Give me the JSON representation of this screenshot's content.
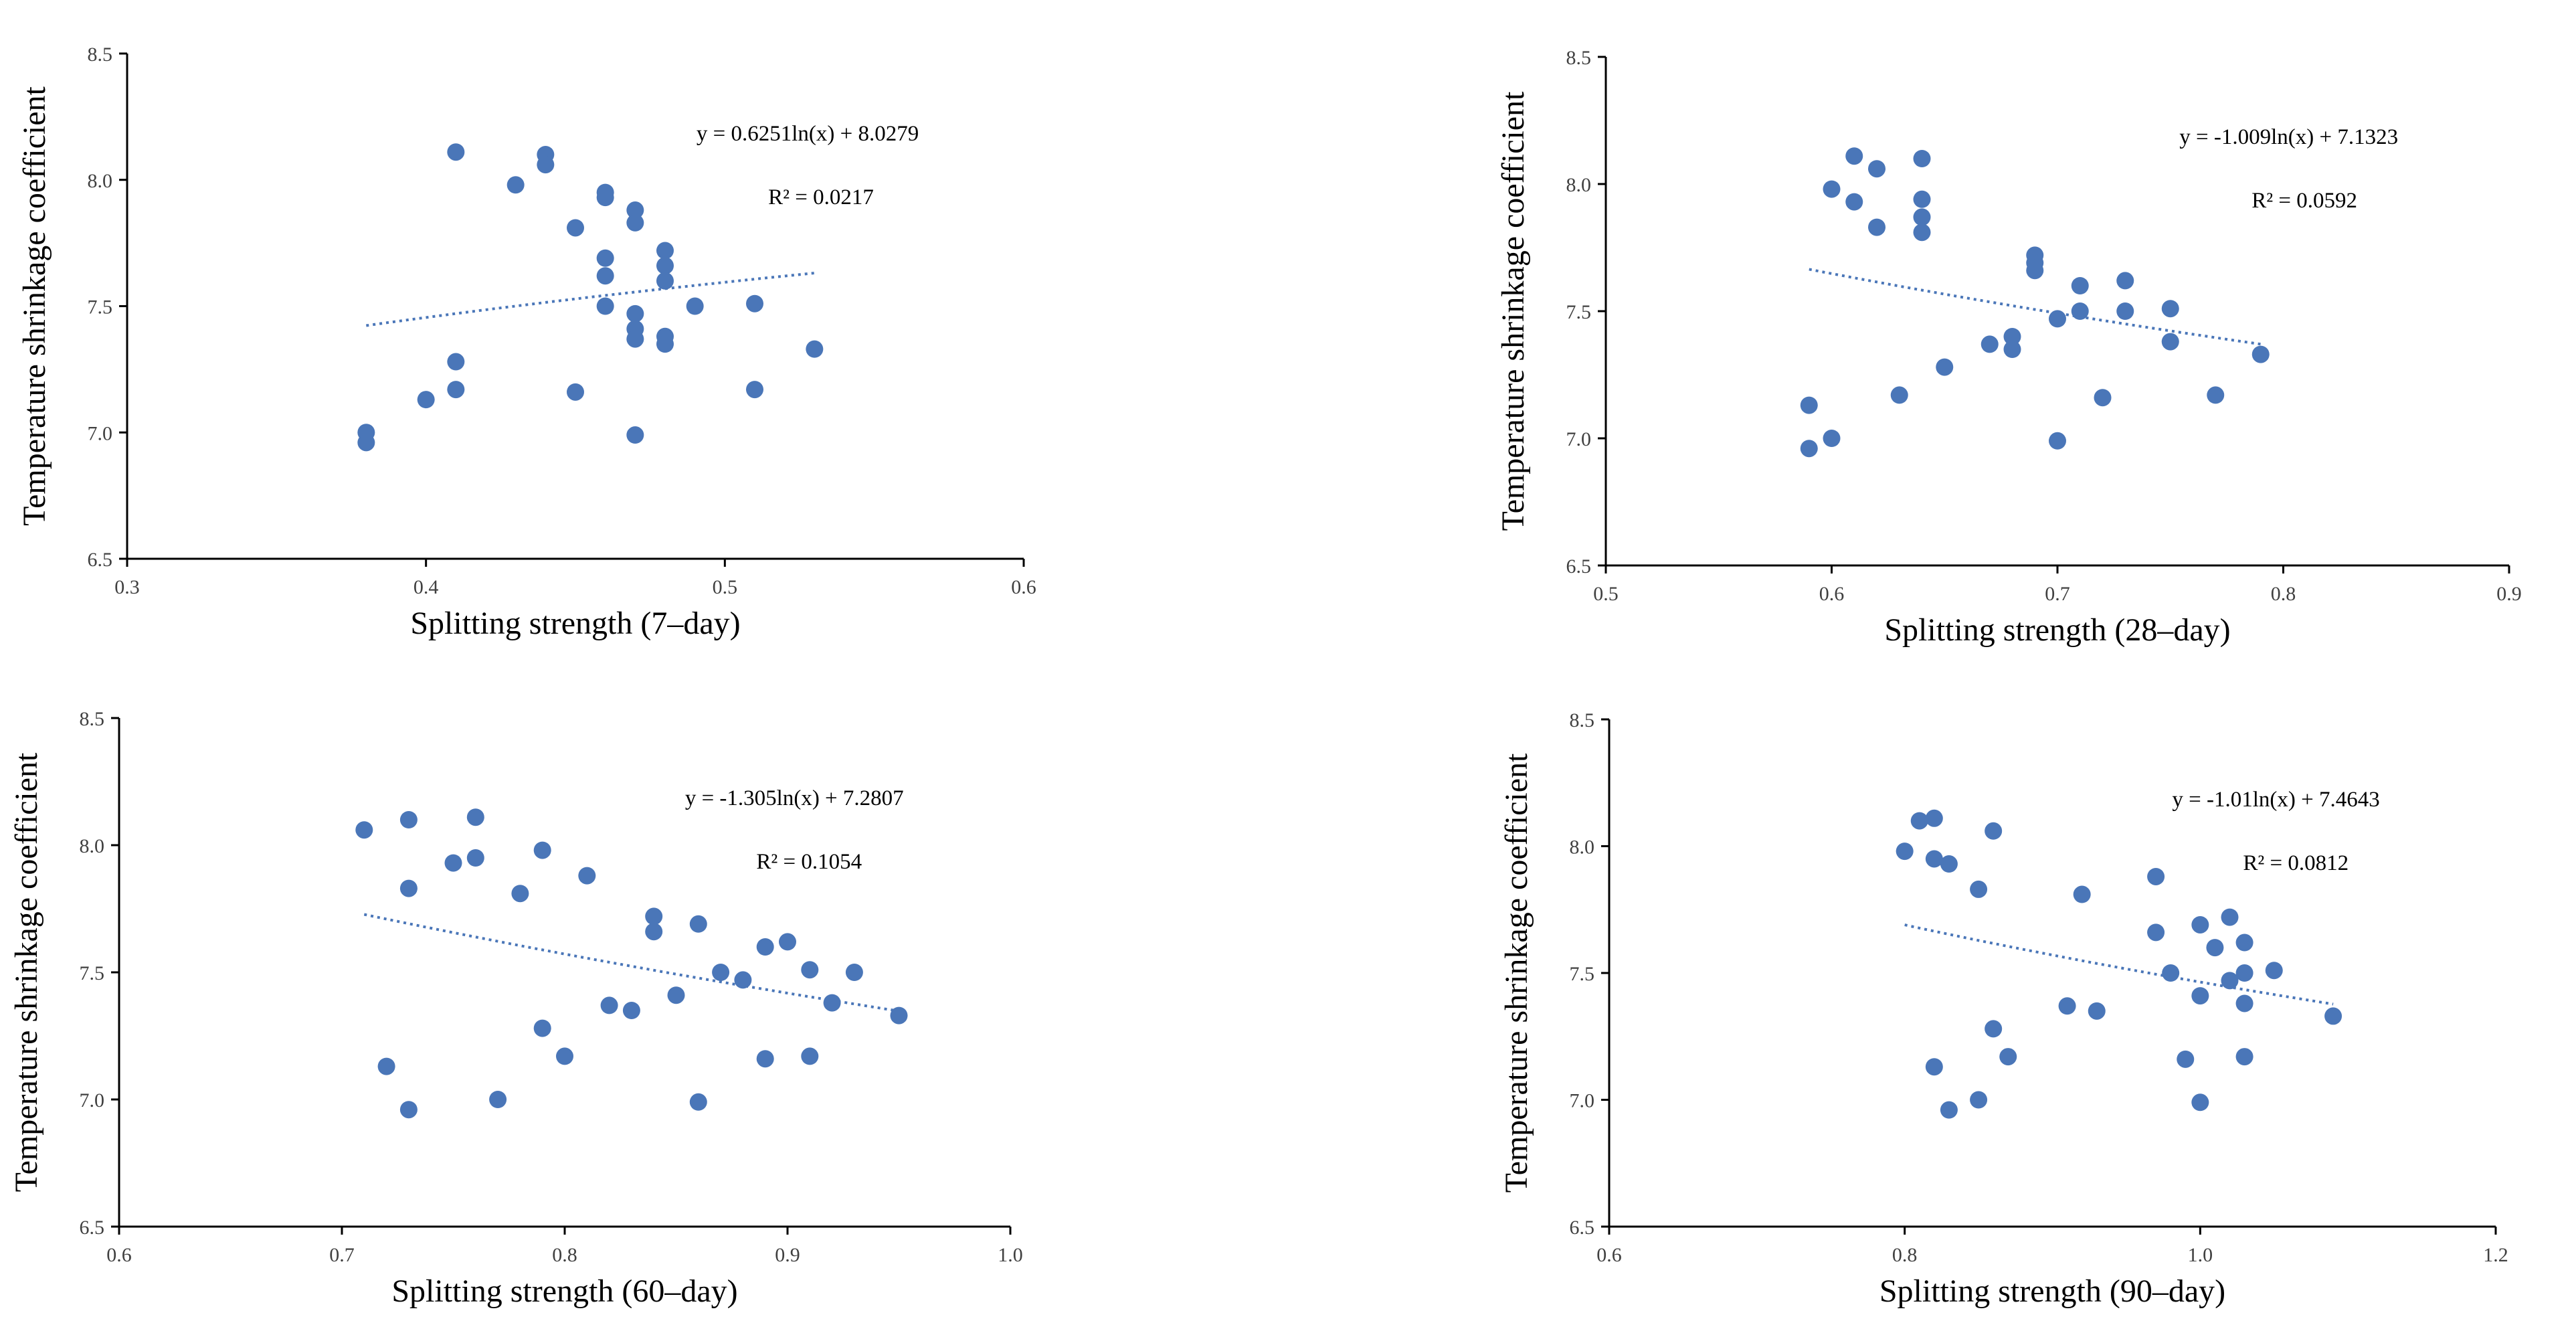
{
  "colors": {
    "point": "#4a76b8",
    "trendline": "#4a76b8",
    "axis": "#000000"
  },
  "chart_data": [
    {
      "type": "scatter",
      "xlabel": "Splitting strength (7–day)",
      "ylabel": "Temperature shrinkage coefficient",
      "xlim": [
        0.3,
        0.6
      ],
      "ylim": [
        6.5,
        8.5
      ],
      "xticks": [
        "0.3",
        "0.4",
        "0.5",
        "0.6"
      ],
      "yticks": [
        "6.5",
        "7.0",
        "7.5",
        "8.0",
        "8.5"
      ],
      "equation": "y = 0.6251ln(x)  + 8.0279",
      "r_squared": "R² = 0.0217",
      "trend": {
        "a": 0.6251,
        "b": 8.0279,
        "x_from": 0.38,
        "x_to": 0.53
      },
      "points": [
        [
          0.38,
          7.0
        ],
        [
          0.38,
          6.96
        ],
        [
          0.4,
          7.13
        ],
        [
          0.41,
          8.11
        ],
        [
          0.41,
          7.28
        ],
        [
          0.41,
          7.17
        ],
        [
          0.43,
          7.98
        ],
        [
          0.44,
          8.1
        ],
        [
          0.44,
          8.06
        ],
        [
          0.45,
          7.81
        ],
        [
          0.45,
          7.16
        ],
        [
          0.46,
          7.95
        ],
        [
          0.46,
          7.93
        ],
        [
          0.46,
          7.69
        ],
        [
          0.46,
          7.62
        ],
        [
          0.46,
          7.5
        ],
        [
          0.47,
          7.88
        ],
        [
          0.47,
          7.83
        ],
        [
          0.47,
          7.47
        ],
        [
          0.47,
          7.41
        ],
        [
          0.47,
          7.37
        ],
        [
          0.47,
          6.99
        ],
        [
          0.48,
          7.72
        ],
        [
          0.48,
          7.66
        ],
        [
          0.48,
          7.6
        ],
        [
          0.48,
          7.38
        ],
        [
          0.48,
          7.35
        ],
        [
          0.49,
          7.5
        ],
        [
          0.51,
          7.51
        ],
        [
          0.51,
          7.17
        ],
        [
          0.53,
          7.33
        ]
      ]
    },
    {
      "type": "scatter",
      "xlabel": "Splitting strength (28–day)",
      "ylabel": "Temperature shrinkage coefficient",
      "xlim": [
        0.5,
        0.9
      ],
      "ylim": [
        6.5,
        8.5
      ],
      "xticks": [
        "0.5",
        "0.6",
        "0.7",
        "0.8",
        "0.9"
      ],
      "yticks": [
        "6.5",
        "7.0",
        "7.5",
        "8.0",
        "8.5"
      ],
      "equation": "y = -1.009ln(x)  + 7.1323",
      "r_squared": "R² = 0.0592",
      "trend": {
        "a": -1.009,
        "b": 7.1323,
        "x_from": 0.59,
        "x_to": 0.79
      },
      "points": [
        [
          0.59,
          7.13
        ],
        [
          0.59,
          6.96
        ],
        [
          0.6,
          7.98
        ],
        [
          0.6,
          7.0
        ],
        [
          0.61,
          8.11
        ],
        [
          0.61,
          7.93
        ],
        [
          0.62,
          8.06
        ],
        [
          0.62,
          7.83
        ],
        [
          0.63,
          7.17
        ],
        [
          0.64,
          8.1
        ],
        [
          0.64,
          7.94
        ],
        [
          0.64,
          7.87
        ],
        [
          0.64,
          7.81
        ],
        [
          0.65,
          7.28
        ],
        [
          0.67,
          7.37
        ],
        [
          0.68,
          7.4
        ],
        [
          0.68,
          7.35
        ],
        [
          0.69,
          7.72
        ],
        [
          0.69,
          7.69
        ],
        [
          0.69,
          7.66
        ],
        [
          0.7,
          7.47
        ],
        [
          0.7,
          6.99
        ],
        [
          0.71,
          7.6
        ],
        [
          0.71,
          7.5
        ],
        [
          0.72,
          7.16
        ],
        [
          0.73,
          7.62
        ],
        [
          0.73,
          7.5
        ],
        [
          0.75,
          7.51
        ],
        [
          0.75,
          7.38
        ],
        [
          0.77,
          7.17
        ],
        [
          0.79,
          7.33
        ]
      ]
    },
    {
      "type": "scatter",
      "xlabel": "Splitting strength (60–day)",
      "ylabel": "Temperature shrinkage coefficient",
      "xlim": [
        0.6,
        1.0
      ],
      "ylim": [
        6.5,
        8.5
      ],
      "xticks": [
        "0.6",
        "0.7",
        "0.8",
        "0.9",
        "1.0"
      ],
      "yticks": [
        "6.5",
        "7.0",
        "7.5",
        "8.0",
        "8.5"
      ],
      "equation": "y = -1.305ln(x)  + 7.2807",
      "r_squared": "R² = 0.1054",
      "trend": {
        "a": -1.305,
        "b": 7.2807,
        "x_from": 0.71,
        "x_to": 0.95
      },
      "points": [
        [
          0.71,
          8.06
        ],
        [
          0.72,
          7.13
        ],
        [
          0.73,
          8.1
        ],
        [
          0.73,
          7.83
        ],
        [
          0.73,
          6.96
        ],
        [
          0.75,
          7.93
        ],
        [
          0.76,
          8.11
        ],
        [
          0.76,
          7.95
        ],
        [
          0.77,
          7.0
        ],
        [
          0.78,
          7.81
        ],
        [
          0.79,
          7.98
        ],
        [
          0.79,
          7.28
        ],
        [
          0.8,
          7.17
        ],
        [
          0.81,
          7.88
        ],
        [
          0.82,
          7.37
        ],
        [
          0.83,
          7.35
        ],
        [
          0.84,
          7.72
        ],
        [
          0.84,
          7.66
        ],
        [
          0.85,
          7.41
        ],
        [
          0.86,
          7.69
        ],
        [
          0.86,
          6.99
        ],
        [
          0.87,
          7.5
        ],
        [
          0.88,
          7.47
        ],
        [
          0.89,
          7.6
        ],
        [
          0.89,
          7.16
        ],
        [
          0.9,
          7.62
        ],
        [
          0.91,
          7.51
        ],
        [
          0.91,
          7.17
        ],
        [
          0.92,
          7.38
        ],
        [
          0.93,
          7.5
        ],
        [
          0.95,
          7.33
        ]
      ]
    },
    {
      "type": "scatter",
      "xlabel": "Splitting strength (90–day)",
      "ylabel": "Temperature shrinkage coefficient",
      "xlim": [
        0.6,
        1.2
      ],
      "ylim": [
        6.5,
        8.5
      ],
      "xticks": [
        "0.6",
        "0.8",
        "1.0",
        "1.2"
      ],
      "yticks": [
        "6.5",
        "7.0",
        "7.5",
        "8.0",
        "8.5"
      ],
      "equation": "y = -1.01ln(x)  + 7.4643",
      "r_squared": "R² = 0.0812",
      "trend": {
        "a": -1.01,
        "b": 7.4643,
        "x_from": 0.8,
        "x_to": 1.09
      },
      "points": [
        [
          0.8,
          7.98
        ],
        [
          0.81,
          8.1
        ],
        [
          0.82,
          8.11
        ],
        [
          0.82,
          7.95
        ],
        [
          0.82,
          7.13
        ],
        [
          0.83,
          7.93
        ],
        [
          0.83,
          6.96
        ],
        [
          0.85,
          7.83
        ],
        [
          0.85,
          7.0
        ],
        [
          0.86,
          8.06
        ],
        [
          0.86,
          7.28
        ],
        [
          0.87,
          7.17
        ],
        [
          0.91,
          7.37
        ],
        [
          0.92,
          7.81
        ],
        [
          0.93,
          7.35
        ],
        [
          0.97,
          7.88
        ],
        [
          0.97,
          7.66
        ],
        [
          0.98,
          7.5
        ],
        [
          0.99,
          7.16
        ],
        [
          1.0,
          7.69
        ],
        [
          1.0,
          7.41
        ],
        [
          1.0,
          6.99
        ],
        [
          1.01,
          7.6
        ],
        [
          1.02,
          7.72
        ],
        [
          1.02,
          7.47
        ],
        [
          1.03,
          7.62
        ],
        [
          1.03,
          7.5
        ],
        [
          1.03,
          7.38
        ],
        [
          1.03,
          7.17
        ],
        [
          1.05,
          7.51
        ],
        [
          1.09,
          7.33
        ]
      ]
    }
  ]
}
